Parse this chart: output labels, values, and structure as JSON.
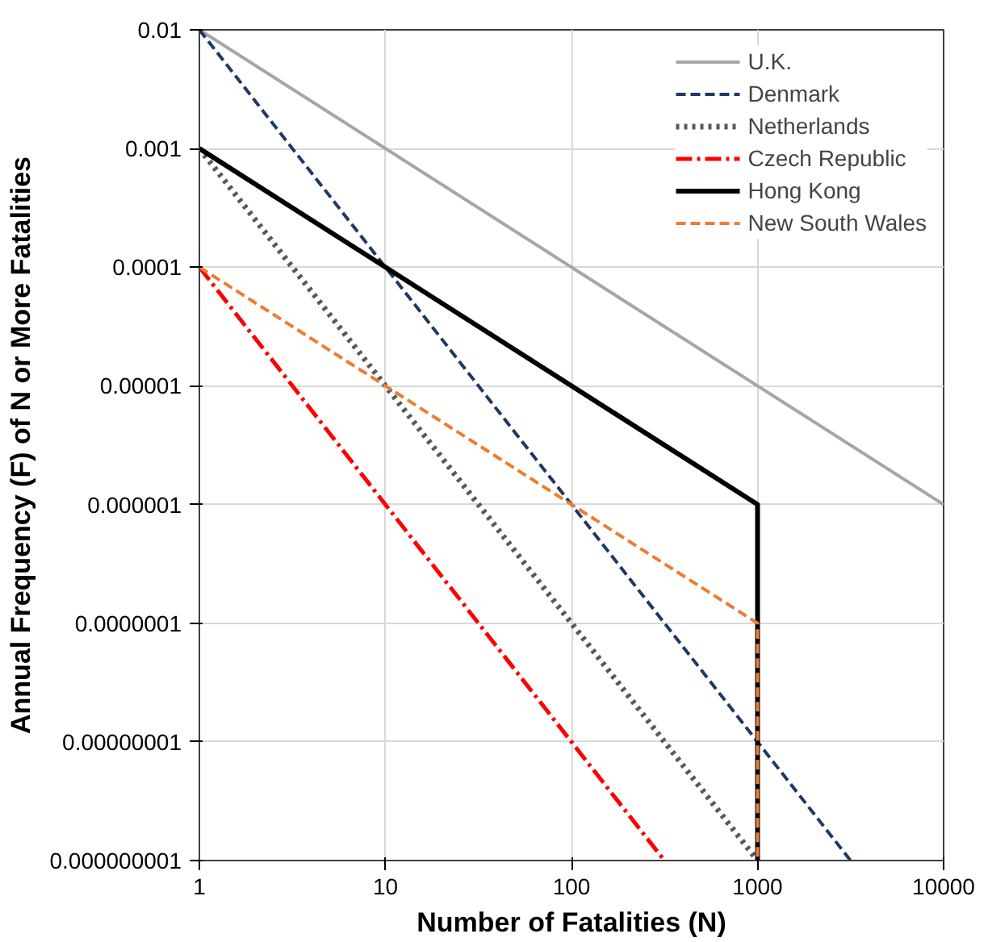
{
  "chart_data": {
    "type": "line",
    "xlabel": "Number of Fatalities (N)",
    "ylabel": "Annual Frequency (F) of N or More Fatalities",
    "log": "xy",
    "grid": true,
    "legend": "top right",
    "xlim": [
      1,
      10000
    ],
    "xticks": [
      1,
      10,
      100,
      1000,
      10000
    ],
    "ylim": [
      1e-09,
      0.01
    ],
    "yticks": [
      {
        "value": 1e-09,
        "label": "0.000000001"
      },
      {
        "value": 1e-08,
        "label": "0.00000001"
      },
      {
        "value": 1e-07,
        "label": "0.0000001"
      },
      {
        "value": 1e-06,
        "label": "0.000001"
      },
      {
        "value": 1e-05,
        "label": "0.00001"
      },
      {
        "value": 0.0001,
        "label": "0.0001"
      },
      {
        "value": 0.001,
        "label": "0.001"
      },
      {
        "value": 0.01,
        "label": "0.01"
      }
    ],
    "series": [
      {
        "name": "U.K.",
        "color": "#a6a6a6",
        "line_style": "solid",
        "x": [
          1,
          10000
        ],
        "values": [
          0.01,
          1e-06
        ]
      },
      {
        "name": "Denmark",
        "color": "#1f3864",
        "line_style": "dashed",
        "x": [
          1,
          3162
        ],
        "values": [
          0.01,
          1e-09
        ]
      },
      {
        "name": "Netherlands",
        "color": "#595959",
        "line_style": "dotted",
        "x": [
          1,
          1000
        ],
        "values": [
          0.001,
          1e-09
        ]
      },
      {
        "name": "Czech Republic",
        "color": "#ff0000",
        "line_style": "dashdot",
        "x": [
          1,
          316
        ],
        "values": [
          0.0001,
          1e-09
        ]
      },
      {
        "name": "Hong Kong",
        "color": "#000000",
        "line_style": "solid",
        "x": [
          1,
          1000,
          1000
        ],
        "values": [
          0.001,
          1e-06,
          1e-09
        ]
      },
      {
        "name": "New South Wales",
        "color": "#ed7d31",
        "line_style": "dashed",
        "x": [
          1,
          1000,
          1000
        ],
        "values": [
          0.0001,
          1e-07,
          1e-09
        ]
      }
    ]
  }
}
